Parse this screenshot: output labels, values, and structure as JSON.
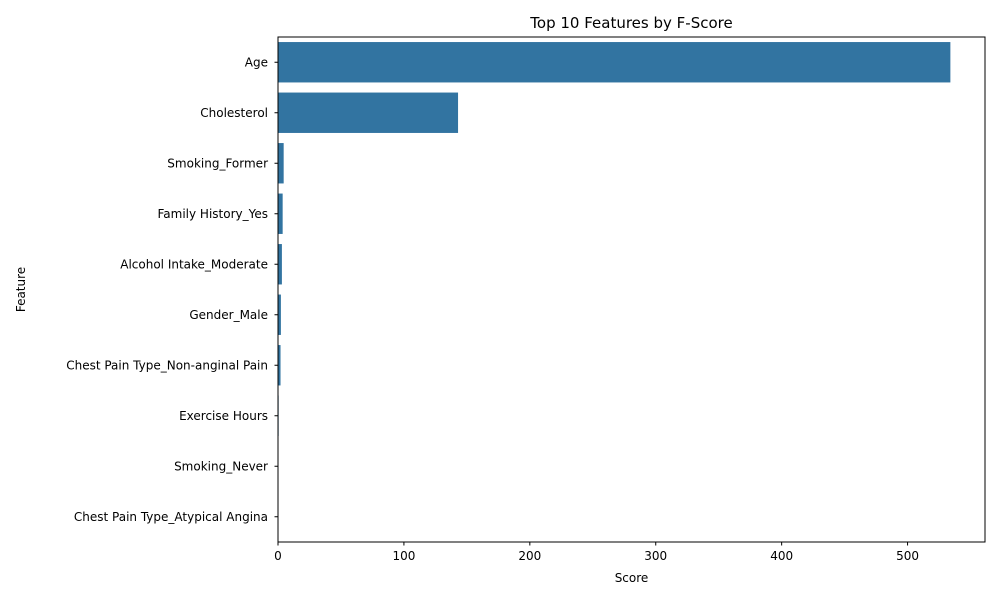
{
  "chart_data": {
    "type": "bar",
    "orientation": "horizontal",
    "title": "Top 10 Features by F-Score",
    "xlabel": "Score",
    "ylabel": "Feature",
    "categories": [
      "Age",
      "Cholesterol",
      "Smoking_Former",
      "Family History_Yes",
      "Alcohol Intake_Moderate",
      "Gender_Male",
      "Chest Pain Type_Non-anginal Pain",
      "Exercise Hours",
      "Smoking_Never",
      "Chest Pain Type_Atypical Angina"
    ],
    "values": [
      534,
      143,
      4.5,
      3.7,
      3.1,
      2.3,
      2.0,
      0.5,
      0.3,
      0.1
    ],
    "xlim": [
      0,
      561.5
    ],
    "xticks": [
      0,
      100,
      200,
      300,
      400,
      500
    ],
    "grid": false,
    "legend": "none",
    "bar_color": "#3274a1"
  }
}
